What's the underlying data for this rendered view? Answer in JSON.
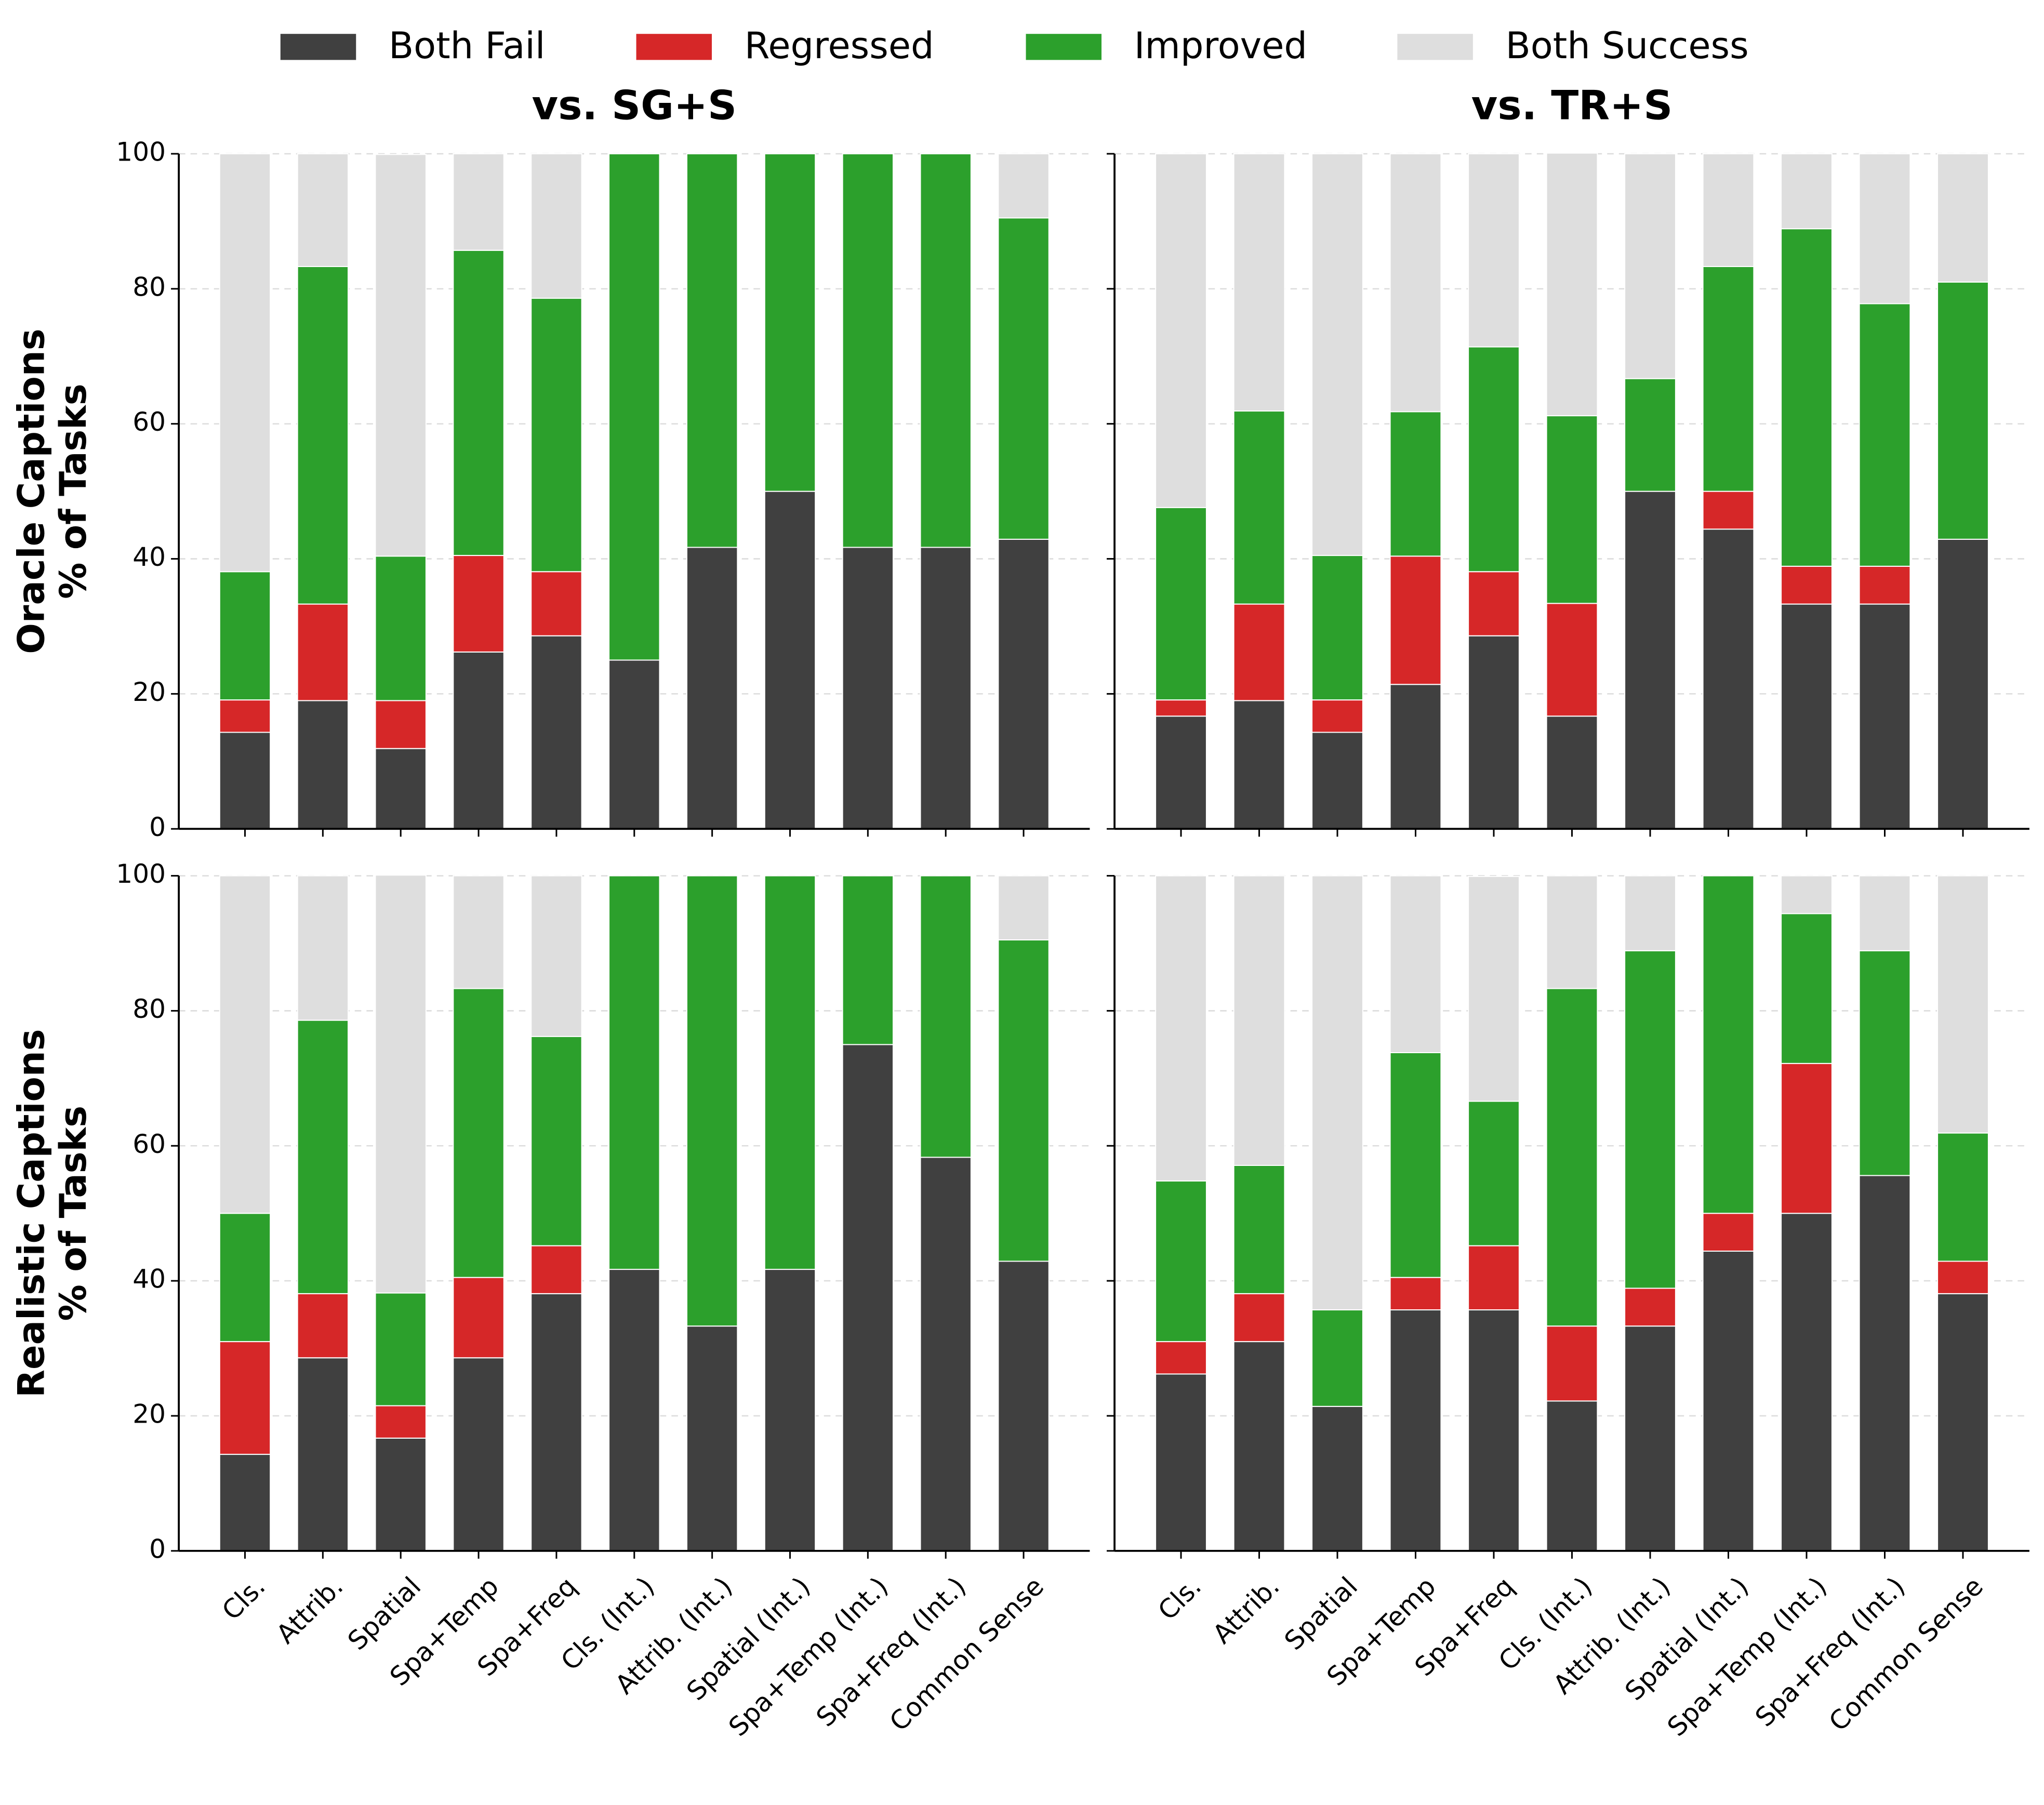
{
  "chart_data": [
    {
      "type": "bar",
      "stacked": true,
      "title": "vs. SG+S",
      "ylabel": [
        "Oracle Captions",
        "% of Tasks"
      ],
      "categories": [
        "Cls.",
        "Attrib.",
        "Spatial",
        "Spa+Temp",
        "Spa+Freq",
        "Cls. (Int.)",
        "Attrib. (Int.)",
        "Spatial (Int.)",
        "Spa+Temp (Int.)",
        "Spa+Freq (Int.)",
        "Common Sense"
      ],
      "series": [
        {
          "name": "Both Fail",
          "color": "#404040",
          "values": [
            14.3,
            19.0,
            11.9,
            26.2,
            28.6,
            25.0,
            41.7,
            50.0,
            41.7,
            41.7,
            42.9
          ]
        },
        {
          "name": "Regressed",
          "color": "#d62728",
          "values": [
            4.8,
            14.3,
            7.1,
            14.3,
            9.5,
            0,
            0,
            0,
            0,
            0,
            0
          ]
        },
        {
          "name": "Improved",
          "color": "#2ca02c",
          "values": [
            19.0,
            50.0,
            21.4,
            45.2,
            40.5,
            75.0,
            58.3,
            50.0,
            58.3,
            58.3,
            47.6
          ]
        },
        {
          "name": "Both Success",
          "color": "#dedede",
          "values": [
            61.9,
            16.7,
            59.5,
            14.3,
            21.4,
            0,
            0,
            0,
            0,
            0,
            9.5
          ]
        }
      ],
      "ylim": [
        0,
        100
      ],
      "yticks": [
        0,
        20,
        40,
        60,
        80,
        100
      ],
      "grid": true
    },
    {
      "type": "bar",
      "stacked": true,
      "title": "vs. TR+S",
      "categories": [
        "Cls.",
        "Attrib.",
        "Spatial",
        "Spa+Temp",
        "Spa+Freq",
        "Cls. (Int.)",
        "Attrib. (Int.)",
        "Spatial (Int.)",
        "Spa+Temp (Int.)",
        "Spa+Freq (Int.)",
        "Common Sense"
      ],
      "series": [
        {
          "name": "Both Fail",
          "color": "#404040",
          "values": [
            16.7,
            19.0,
            14.3,
            21.4,
            28.6,
            16.7,
            50.0,
            44.4,
            33.3,
            33.3,
            42.9
          ]
        },
        {
          "name": "Regressed",
          "color": "#d62728",
          "values": [
            2.4,
            14.3,
            4.8,
            19.0,
            9.5,
            16.7,
            0,
            5.6,
            5.6,
            5.6,
            0
          ]
        },
        {
          "name": "Improved",
          "color": "#2ca02c",
          "values": [
            28.5,
            28.6,
            21.4,
            21.4,
            33.3,
            27.8,
            16.7,
            33.3,
            50.0,
            38.9,
            38.1
          ]
        },
        {
          "name": "Both Success",
          "color": "#dedede",
          "values": [
            52.4,
            38.1,
            59.5,
            38.2,
            28.6,
            38.9,
            33.3,
            16.7,
            11.1,
            22.2,
            19.0
          ]
        }
      ],
      "ylim": [
        0,
        100
      ],
      "yticks": [
        0,
        20,
        40,
        60,
        80,
        100
      ],
      "grid": true
    },
    {
      "type": "bar",
      "stacked": true,
      "ylabel": [
        "Realistic Captions",
        "% of Tasks"
      ],
      "categories": [
        "Cls.",
        "Attrib.",
        "Spatial",
        "Spa+Temp",
        "Spa+Freq",
        "Cls. (Int.)",
        "Attrib. (Int.)",
        "Spatial (Int.)",
        "Spa+Temp (Int.)",
        "Spa+Freq (Int.)",
        "Common Sense"
      ],
      "series": [
        {
          "name": "Both Fail",
          "color": "#404040",
          "values": [
            14.3,
            28.6,
            16.7,
            28.6,
            38.1,
            41.7,
            33.3,
            41.7,
            75.0,
            58.3,
            42.9
          ]
        },
        {
          "name": "Regressed",
          "color": "#d62728",
          "values": [
            16.7,
            9.5,
            4.8,
            11.9,
            7.1,
            0,
            0,
            0,
            0,
            0,
            0
          ]
        },
        {
          "name": "Improved",
          "color": "#2ca02c",
          "values": [
            19.0,
            40.5,
            16.7,
            42.8,
            31.0,
            58.3,
            66.7,
            58.3,
            25.0,
            41.7,
            47.6
          ]
        },
        {
          "name": "Both Success",
          "color": "#dedede",
          "values": [
            50.0,
            21.4,
            61.9,
            16.7,
            23.8,
            0,
            0,
            0,
            0,
            0,
            9.5
          ]
        }
      ],
      "ylim": [
        0,
        100
      ],
      "yticks": [
        0,
        20,
        40,
        60,
        80,
        100
      ],
      "grid": true
    },
    {
      "type": "bar",
      "stacked": true,
      "categories": [
        "Cls.",
        "Attrib.",
        "Spatial",
        "Spa+Temp",
        "Spa+Freq",
        "Cls. (Int.)",
        "Attrib. (Int.)",
        "Spatial (Int.)",
        "Spa+Temp (Int.)",
        "Spa+Freq (Int.)",
        "Common Sense"
      ],
      "series": [
        {
          "name": "Both Fail",
          "color": "#404040",
          "values": [
            26.2,
            31.0,
            21.4,
            35.7,
            35.7,
            22.2,
            33.3,
            44.4,
            50.0,
            55.6,
            38.1
          ]
        },
        {
          "name": "Regressed",
          "color": "#d62728",
          "values": [
            4.8,
            7.1,
            0,
            4.8,
            9.5,
            11.1,
            5.6,
            5.6,
            22.2,
            0,
            4.8
          ]
        },
        {
          "name": "Improved",
          "color": "#2ca02c",
          "values": [
            23.8,
            19.0,
            14.3,
            33.3,
            21.4,
            50.0,
            50.0,
            50.0,
            22.2,
            33.3,
            19.0
          ]
        },
        {
          "name": "Both Success",
          "color": "#dedede",
          "values": [
            45.2,
            42.9,
            64.3,
            26.2,
            33.3,
            16.7,
            11.1,
            0,
            5.6,
            11.1,
            38.1
          ]
        }
      ],
      "ylim": [
        0,
        100
      ],
      "yticks": [
        0,
        20,
        40,
        60,
        80,
        100
      ],
      "grid": true
    }
  ]
}
